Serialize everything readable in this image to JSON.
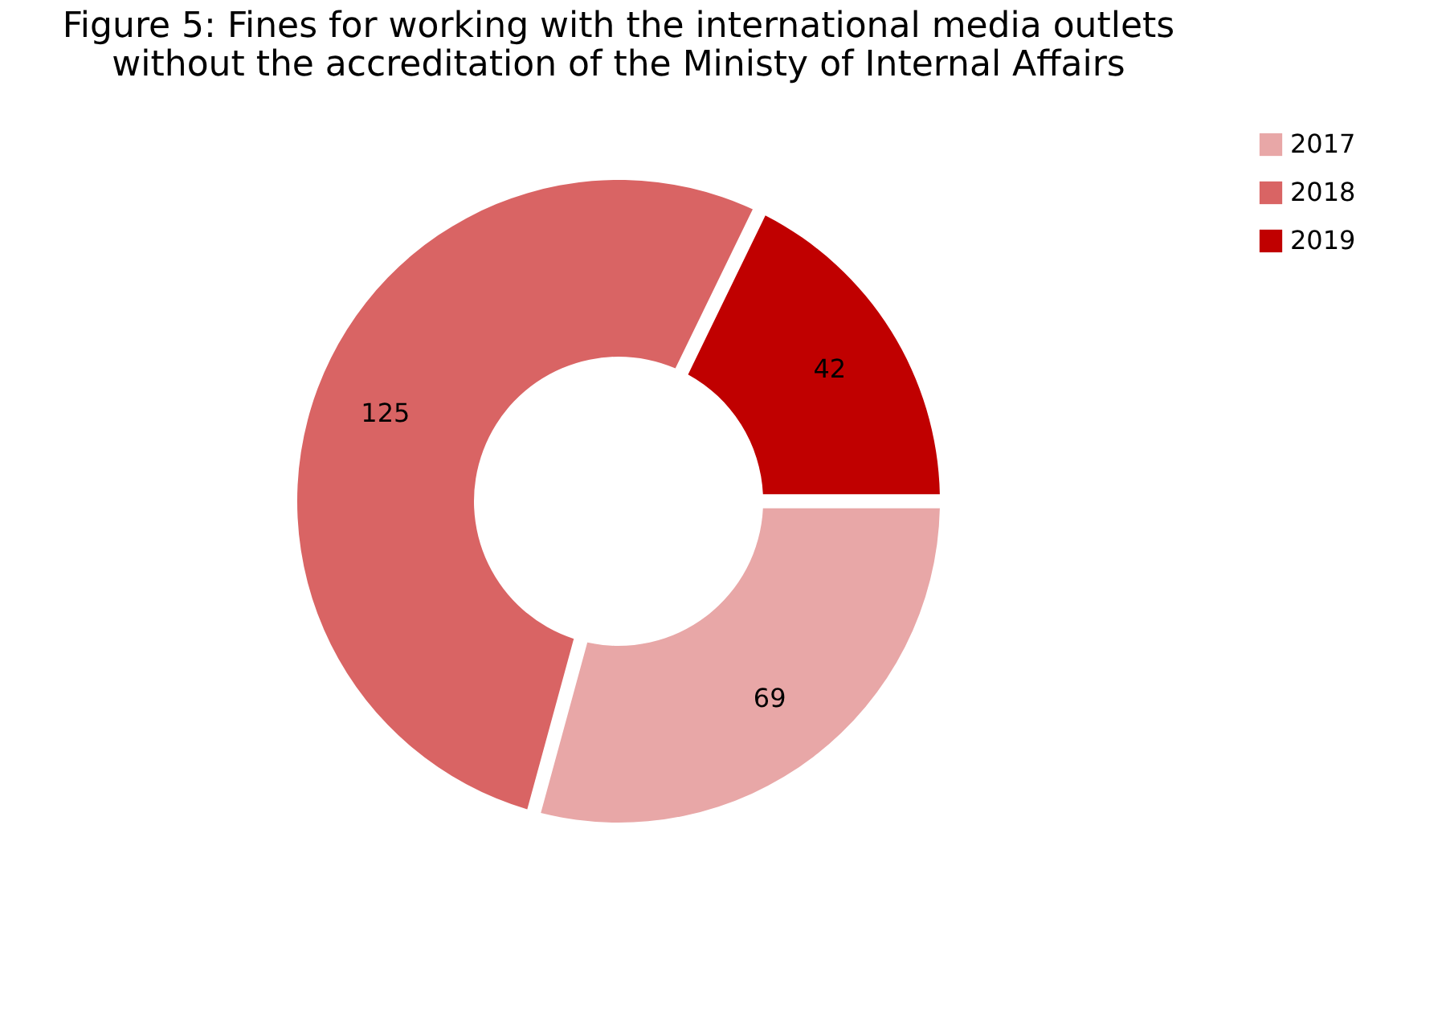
{
  "chart_data": {
    "type": "donut",
    "title": [
      "Figure 5: Fines for working with the international media outlets",
      "without the accreditation of the Ministy of Internal Affairs"
    ],
    "categories": [
      "2017",
      "2018",
      "2019"
    ],
    "values": [
      69,
      125,
      42
    ],
    "colors": [
      "#e8a7a7",
      "#d96464",
      "#c00000"
    ],
    "data_labels": true,
    "legend": "right"
  }
}
